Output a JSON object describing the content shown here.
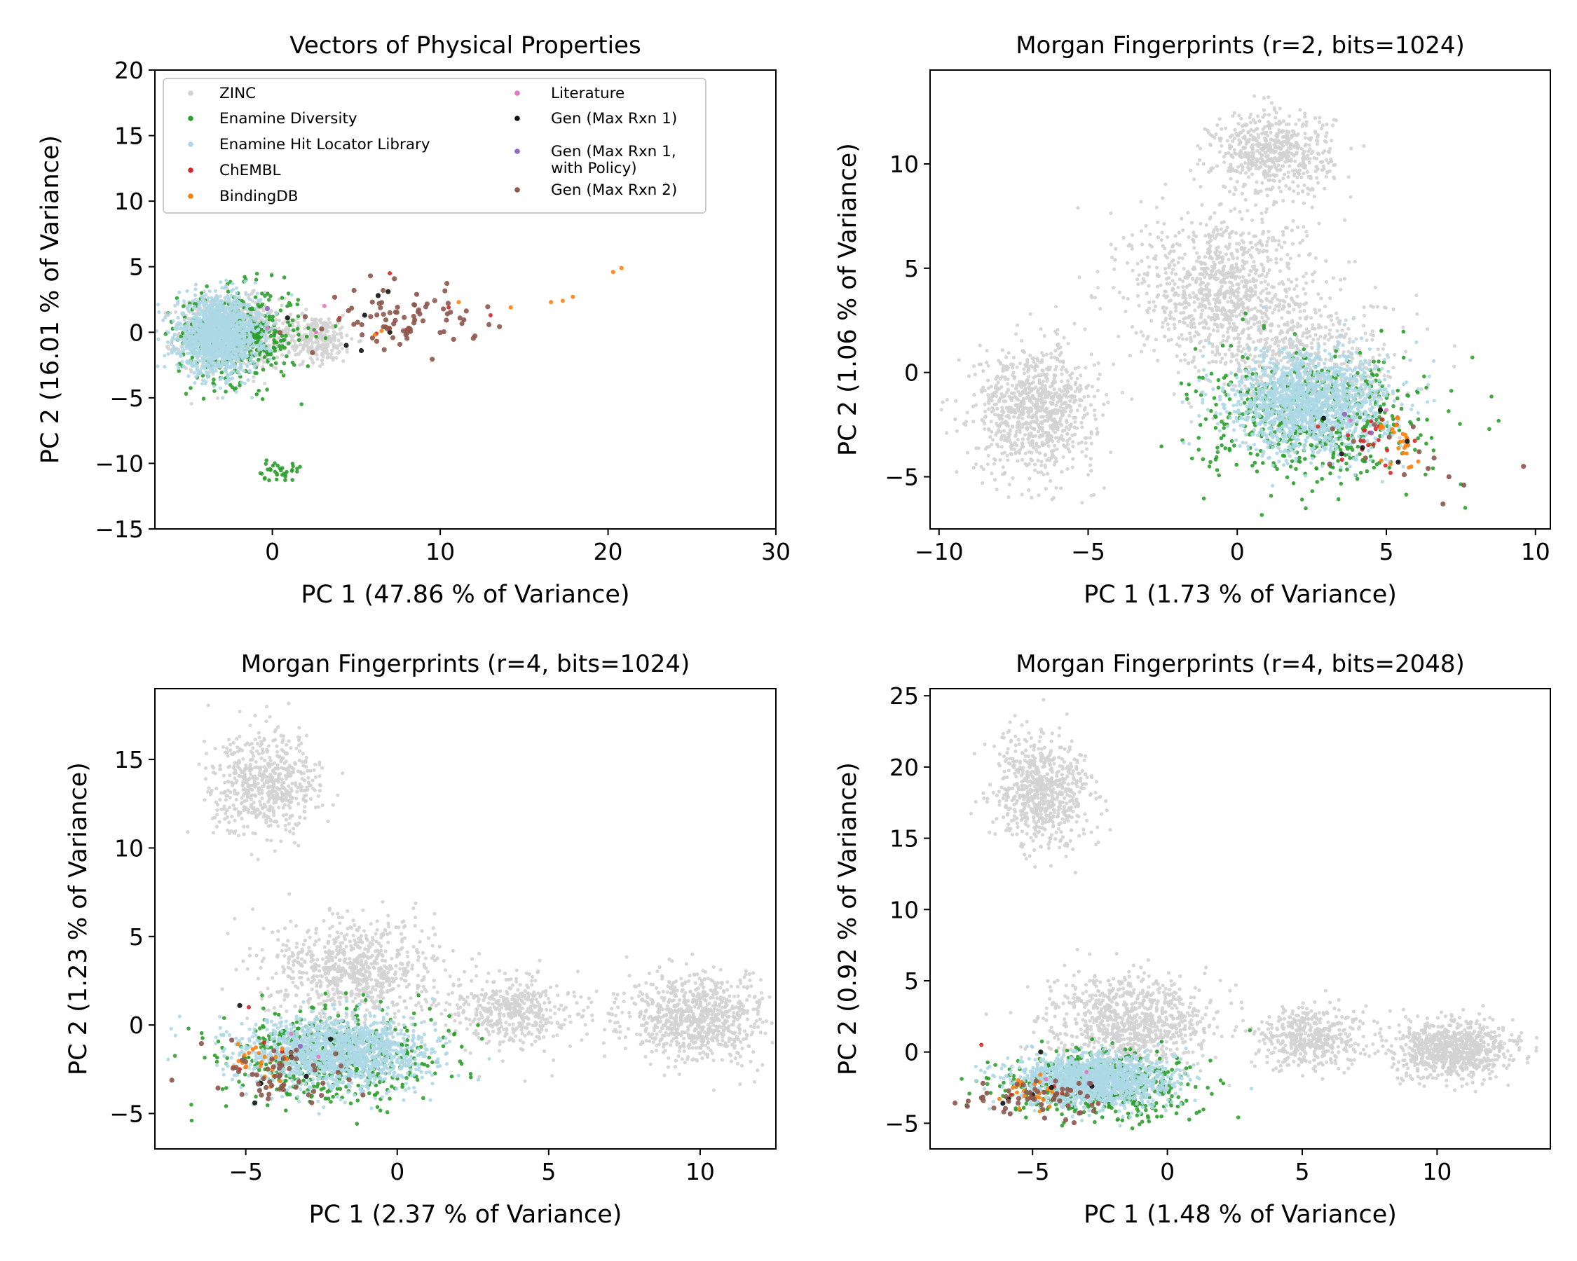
{
  "figure": {
    "colors": {
      "ZINC": "#d3d3d3",
      "Enamine Diversity": "#2ca02c",
      "Enamine Hit Locator Library": "#add8e6",
      "ChEMBL": "#d62728",
      "BindingDB": "#ff7f0e",
      "Literature": "#e377c2",
      "Gen (Max Rxn 1)": "#111111",
      "Gen (Max Rxn 1, with Policy)": "#9467bd",
      "Gen (Max Rxn 2)": "#8c564b"
    },
    "legend": {
      "placement": "top-left of first panel, two columns",
      "entries": [
        {
          "label": "ZINC",
          "color": "#d3d3d3"
        },
        {
          "label": "Enamine Diversity",
          "color": "#2ca02c"
        },
        {
          "label": "Enamine Hit Locator Library",
          "color": "#add8e6"
        },
        {
          "label": "ChEMBL",
          "color": "#d62728"
        },
        {
          "label": "BindingDB",
          "color": "#ff7f0e"
        },
        {
          "label": "Literature",
          "color": "#e377c2"
        },
        {
          "label": "Gen (Max Rxn 1)",
          "color": "#111111"
        },
        {
          "label": "Gen (Max Rxn 1,\nwith Policy)",
          "color": "#9467bd"
        },
        {
          "label": "Gen (Max Rxn 2)",
          "color": "#8c564b"
        }
      ]
    }
  },
  "chart_data": [
    {
      "type": "scatter",
      "title": "Vectors of Physical Properties",
      "xlabel": "PC 1 (47.86 % of Variance)",
      "ylabel": "PC 2 (16.01 % of Variance)",
      "xlim": [
        -7,
        30
      ],
      "ylim": [
        -15,
        20
      ],
      "xticks": [
        0,
        10,
        20,
        30
      ],
      "yticks": [
        -15,
        -10,
        -5,
        0,
        5,
        10,
        15,
        20
      ],
      "grid": false,
      "series": [
        {
          "name": "ZINC",
          "clusters": [
            {
              "cx": -2.5,
              "cy": 0,
              "sx": 1.5,
              "sy": 1.3,
              "n": 900
            },
            {
              "cx": 2.5,
              "cy": -0.5,
              "sx": 1.2,
              "sy": 0.9,
              "n": 300
            }
          ]
        },
        {
          "name": "Enamine Diversity",
          "clusters": [
            {
              "cx": -2.0,
              "cy": -0.3,
              "sx": 1.8,
              "sy": 1.8,
              "n": 450
            },
            {
              "cx": 0.3,
              "cy": -10.6,
              "sx": 0.7,
              "sy": 0.35,
              "n": 35
            }
          ]
        },
        {
          "name": "Enamine Hit Locator Library",
          "clusters": [
            {
              "cx": -3.2,
              "cy": -0.2,
              "sx": 1.2,
              "sy": 1.4,
              "n": 1500
            }
          ]
        },
        {
          "name": "ChEMBL",
          "points": [
            [
              7.0,
              4.5
            ],
            [
              13.0,
              1.3
            ],
            [
              4.0,
              1.1
            ],
            [
              10.5,
              1.9
            ],
            [
              8.0,
              0.2
            ],
            [
              6.2,
              -0.1
            ]
          ]
        },
        {
          "name": "BindingDB",
          "points": [
            [
              20.3,
              4.6
            ],
            [
              20.8,
              4.9
            ],
            [
              16.6,
              2.3
            ],
            [
              17.3,
              2.4
            ],
            [
              17.9,
              2.7
            ],
            [
              14.2,
              1.9
            ],
            [
              11.1,
              2.3
            ],
            [
              6.5,
              0.1
            ],
            [
              7.0,
              0.3
            ],
            [
              6.1,
              -0.2
            ],
            [
              6.8,
              0.4
            ]
          ]
        },
        {
          "name": "Literature",
          "points": [
            [
              -0.3,
              0.3
            ],
            [
              3.1,
              2.0
            ],
            [
              2.6,
              0.0
            ]
          ]
        },
        {
          "name": "Gen (Max Rxn 1)",
          "points": [
            [
              0.9,
              1.1
            ],
            [
              4.4,
              -1.0
            ],
            [
              5.5,
              1.3
            ],
            [
              6.3,
              2.8
            ],
            [
              6.9,
              3.1
            ],
            [
              7.0,
              0.0
            ],
            [
              5.3,
              -1.4
            ]
          ]
        },
        {
          "name": "Gen (Max Rxn 1, with Policy)",
          "points": [
            [
              -0.3,
              1.8
            ]
          ]
        },
        {
          "name": "Gen (Max Rxn 2)",
          "clusters": [
            {
              "cx": 7.8,
              "cy": 1.0,
              "sx": 2.2,
              "sy": 1.1,
              "n": 80
            }
          ]
        }
      ]
    },
    {
      "type": "scatter",
      "title": "Morgan Fingerprints (r=2, bits=1024)",
      "xlabel": "PC 1 (1.73 % of Variance)",
      "ylabel": "PC 2 (1.06 % of Variance)",
      "xlim": [
        -10.3,
        10.5
      ],
      "ylim": [
        -7.5,
        14.5
      ],
      "xticks": [
        -10,
        -5,
        0,
        5,
        10
      ],
      "yticks": [
        -5,
        0,
        5,
        10
      ],
      "grid": false,
      "series": [
        {
          "name": "ZINC",
          "clusters": [
            {
              "cx": 1.2,
              "cy": 10.5,
              "sx": 1.0,
              "sy": 1.0,
              "n": 600
            },
            {
              "cx": -6.8,
              "cy": -1.8,
              "sx": 1.0,
              "sy": 1.5,
              "n": 900
            },
            {
              "cx": -0.5,
              "cy": 4.0,
              "sx": 1.5,
              "sy": 1.8,
              "n": 1000
            },
            {
              "cx": 2.5,
              "cy": 0.5,
              "sx": 1.5,
              "sy": 1.5,
              "n": 500
            }
          ]
        },
        {
          "name": "Enamine Diversity",
          "clusters": [
            {
              "cx": 2.5,
              "cy": -2.2,
              "sx": 1.9,
              "sy": 1.5,
              "n": 550
            }
          ]
        },
        {
          "name": "Enamine Hit Locator Library",
          "clusters": [
            {
              "cx": 2.4,
              "cy": -1.5,
              "sx": 1.3,
              "sy": 1.2,
              "n": 1500
            }
          ]
        },
        {
          "name": "ChEMBL",
          "clusters": [
            {
              "cx": 4.6,
              "cy": -3.3,
              "sx": 0.6,
              "sy": 0.7,
              "n": 20
            }
          ]
        },
        {
          "name": "BindingDB",
          "clusters": [
            {
              "cx": 5.4,
              "cy": -3.4,
              "sx": 0.4,
              "sy": 0.6,
              "n": 25
            }
          ]
        },
        {
          "name": "Literature",
          "points": [
            [
              3.8,
              -2.3
            ],
            [
              5.0,
              -1.8
            ]
          ]
        },
        {
          "name": "Gen (Max Rxn 1)",
          "points": [
            [
              2.9,
              -2.2
            ],
            [
              4.8,
              -1.8
            ],
            [
              5.4,
              -4.3
            ],
            [
              5.7,
              -3.3
            ],
            [
              4.2,
              -3.6
            ],
            [
              3.5,
              -3.9
            ]
          ]
        },
        {
          "name": "Gen (Max Rxn 1, with Policy)",
          "points": [
            [
              3.6,
              -2.0
            ],
            [
              4.5,
              -2.9
            ]
          ]
        },
        {
          "name": "Gen (Max Rxn 2)",
          "points": [
            [
              9.6,
              -4.5
            ],
            [
              7.6,
              -5.4
            ],
            [
              6.9,
              -6.3
            ],
            [
              7.1,
              -5.0
            ],
            [
              6.4,
              -4.6
            ],
            [
              6.1,
              -3.8
            ],
            [
              5.6,
              -4.9
            ],
            [
              5.1,
              -3.1
            ],
            [
              4.6,
              -2.5
            ],
            [
              3.9,
              -3.3
            ],
            [
              3.2,
              -2.7
            ],
            [
              4.3,
              -4.1
            ],
            [
              6.6,
              -4.1
            ],
            [
              5.9,
              -2.6
            ],
            [
              3.1,
              -4.4
            ]
          ]
        }
      ]
    },
    {
      "type": "scatter",
      "title": "Morgan Fingerprints (r=4, bits=1024)",
      "xlabel": "PC 1 (2.37 % of Variance)",
      "ylabel": "PC 2 (1.23 % of Variance)",
      "xlim": [
        -8,
        12.5
      ],
      "ylim": [
        -7,
        19
      ],
      "xticks": [
        -5,
        0,
        5,
        10
      ],
      "yticks": [
        -5,
        0,
        5,
        10,
        15
      ],
      "grid": false,
      "series": [
        {
          "name": "ZINC",
          "clusters": [
            {
              "cx": -4.3,
              "cy": 13.6,
              "sx": 0.9,
              "sy": 1.4,
              "n": 600
            },
            {
              "cx": -1.4,
              "cy": 3.0,
              "sx": 1.4,
              "sy": 1.5,
              "n": 800
            },
            {
              "cx": 3.8,
              "cy": 0.8,
              "sx": 1.0,
              "sy": 1.0,
              "n": 450
            },
            {
              "cx": 9.9,
              "cy": 0.4,
              "sx": 1.2,
              "sy": 1.2,
              "n": 800
            }
          ]
        },
        {
          "name": "Enamine Diversity",
          "clusters": [
            {
              "cx": -2.2,
              "cy": -1.8,
              "sx": 1.8,
              "sy": 1.3,
              "n": 500
            }
          ]
        },
        {
          "name": "Enamine Hit Locator Library",
          "clusters": [
            {
              "cx": -2.0,
              "cy": -1.6,
              "sx": 1.5,
              "sy": 1.0,
              "n": 1500
            }
          ]
        },
        {
          "name": "ChEMBL",
          "points": [
            [
              -4.9,
              1.0
            ],
            [
              -4.4,
              -1.0
            ],
            [
              -3.8,
              -1.5
            ],
            [
              -5.2,
              -2.5
            ]
          ]
        },
        {
          "name": "BindingDB",
          "clusters": [
            {
              "cx": -4.5,
              "cy": -2.2,
              "sx": 0.6,
              "sy": 0.6,
              "n": 25
            }
          ]
        },
        {
          "name": "Literature",
          "points": [
            [
              -3.5,
              -0.5
            ],
            [
              -2.6,
              -1.8
            ]
          ]
        },
        {
          "name": "Gen (Max Rxn 1)",
          "points": [
            [
              -5.2,
              1.1
            ],
            [
              -4.7,
              -4.4
            ],
            [
              -4.5,
              -3.3
            ],
            [
              -3.5,
              -1.8
            ],
            [
              -2.2,
              -0.8
            ],
            [
              -3.0,
              -2.9
            ]
          ]
        },
        {
          "name": "Gen (Max Rxn 1, with Policy)",
          "points": [
            [
              -3.2,
              -1.2
            ]
          ]
        },
        {
          "name": "Gen (Max Rxn 2)",
          "clusters": [
            {
              "cx": -4.0,
              "cy": -2.6,
              "sx": 1.2,
              "sy": 0.9,
              "n": 55
            }
          ]
        }
      ]
    },
    {
      "type": "scatter",
      "title": "Morgan Fingerprints (r=4, bits=2048)",
      "xlabel": "PC 1 (1.48 % of Variance)",
      "ylabel": "PC 2 (0.92 % of Variance)",
      "xlim": [
        -8.8,
        14.2
      ],
      "ylim": [
        -6.8,
        25.5
      ],
      "xticks": [
        -5,
        0,
        5,
        10
      ],
      "yticks": [
        -5,
        0,
        5,
        10,
        15,
        20,
        25
      ],
      "grid": false,
      "series": [
        {
          "name": "ZINC",
          "clusters": [
            {
              "cx": -4.6,
              "cy": 18.3,
              "sx": 0.9,
              "sy": 1.9,
              "n": 700
            },
            {
              "cx": -1.4,
              "cy": 2.0,
              "sx": 1.5,
              "sy": 1.6,
              "n": 900
            },
            {
              "cx": 5.3,
              "cy": 1.0,
              "sx": 1.0,
              "sy": 1.1,
              "n": 450
            },
            {
              "cx": 10.6,
              "cy": 0.2,
              "sx": 1.1,
              "sy": 1.0,
              "n": 800
            }
          ]
        },
        {
          "name": "Enamine Diversity",
          "clusters": [
            {
              "cx": -2.6,
              "cy": -2.3,
              "sx": 1.8,
              "sy": 1.2,
              "n": 500
            }
          ]
        },
        {
          "name": "Enamine Hit Locator Library",
          "clusters": [
            {
              "cx": -2.8,
              "cy": -2.0,
              "sx": 1.4,
              "sy": 0.9,
              "n": 1500
            }
          ]
        },
        {
          "name": "ChEMBL",
          "points": [
            [
              -6.9,
              0.5
            ],
            [
              -4.2,
              -2.4
            ],
            [
              -5.8,
              -3.0
            ],
            [
              -3.9,
              -2.9
            ]
          ]
        },
        {
          "name": "BindingDB",
          "clusters": [
            {
              "cx": -5.2,
              "cy": -3.1,
              "sx": 0.5,
              "sy": 0.6,
              "n": 25
            }
          ]
        },
        {
          "name": "Literature",
          "points": [
            [
              -4.5,
              -1.9
            ],
            [
              -3.0,
              -1.4
            ]
          ]
        },
        {
          "name": "Gen (Max Rxn 1)",
          "points": [
            [
              -4.7,
              0.0
            ],
            [
              -5.9,
              -3.3
            ],
            [
              -6.1,
              -3.6
            ],
            [
              -4.3,
              -2.5
            ],
            [
              -2.8,
              -2.4
            ],
            [
              -5.0,
              -3.0
            ]
          ]
        },
        {
          "name": "Gen (Max Rxn 1, with Policy)",
          "points": [
            [
              -2.9,
              -2.2
            ]
          ]
        },
        {
          "name": "Gen (Max Rxn 2)",
          "clusters": [
            {
              "cx": -5.0,
              "cy": -3.3,
              "sx": 1.1,
              "sy": 0.8,
              "n": 55
            }
          ]
        }
      ]
    }
  ]
}
